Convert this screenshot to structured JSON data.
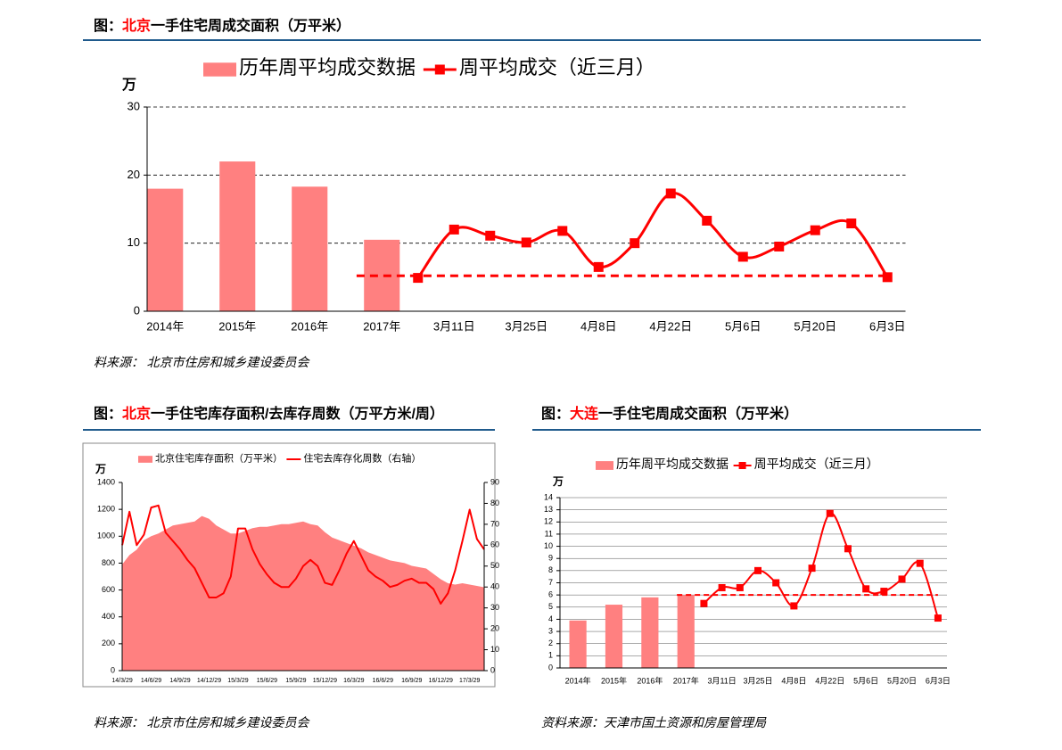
{
  "chart_data": [
    {
      "type": "bar_line",
      "heading": [
        "图：",
        "北京",
        "一手住宅周成交面积（万平米）"
      ],
      "heading_colors": [
        "#000000",
        "#ff0000",
        "#000000"
      ],
      "source": "料来源：  北京市住房和城乡建设委员会",
      "y_unit": "万",
      "categories": [
        "2014年",
        null,
        "2015年",
        null,
        "2016年",
        null,
        "2017年",
        null,
        "3月11日",
        null,
        "3月25日",
        null,
        "4月8日",
        null,
        "4月22日",
        null,
        "5月6日",
        null,
        "5月20日",
        null,
        "6月3日"
      ],
      "series": [
        {
          "name": "历年周平均成交数据",
          "type": "bar",
          "color": "#ff8080",
          "values": [
            18,
            null,
            22,
            null,
            18.3,
            null,
            10.5,
            null,
            null,
            null,
            null,
            null,
            null,
            null,
            null,
            null,
            null,
            null,
            null,
            null,
            null
          ]
        },
        {
          "name": "周平均成交（近三月）",
          "type": "line",
          "color": "#ff0000",
          "marker": "square",
          "smooth": true,
          "values": [
            null,
            null,
            null,
            null,
            null,
            null,
            null,
            4.9,
            12,
            11.1,
            10.1,
            11.8,
            6.5,
            10,
            17.3,
            13.3,
            8,
            9.5,
            11.9,
            12.9,
            5
          ]
        }
      ],
      "reference_line": {
        "value": 5.2,
        "color": "#ff0000",
        "dashed": true
      },
      "ylim": [
        0,
        30
      ],
      "yticks": [
        0,
        10,
        20,
        30
      ],
      "grid": true,
      "grid_style": "dashed"
    },
    {
      "type": "area_line",
      "heading": [
        "图：",
        "北京",
        "一手住宅库存面积/去库存周数（万平方米/周）"
      ],
      "heading_colors": [
        "#000000",
        "#ff0000",
        "#000000"
      ],
      "source": "料来源：   北京市住房和城乡建设委员会",
      "y_unit": "万",
      "categories": [
        "14/3/29",
        null,
        null,
        null,
        "14/6/29",
        null,
        null,
        null,
        "14/9/29",
        null,
        null,
        null,
        "14/12/29",
        null,
        null,
        null,
        "15/3/29",
        null,
        null,
        null,
        "15/6/29",
        null,
        null,
        null,
        "15/9/29",
        null,
        null,
        null,
        "15/12/29",
        null,
        null,
        null,
        "16/3/29",
        null,
        null,
        null,
        "16/6/29",
        null,
        null,
        null,
        "16/9/29",
        null,
        null,
        null,
        "16/12/29",
        null,
        null,
        null,
        "17/3/29",
        null,
        null
      ],
      "series": [
        {
          "name": "北京住宅库存面积（万平米）",
          "type": "area",
          "color": "#ff8080",
          "values": [
            790,
            860,
            900,
            970,
            1000,
            1020,
            1050,
            1080,
            1090,
            1100,
            1110,
            1150,
            1130,
            1080,
            1050,
            1020,
            1020,
            1040,
            1060,
            1070,
            1070,
            1080,
            1090,
            1090,
            1100,
            1110,
            1090,
            1080,
            1030,
            990,
            970,
            950,
            930,
            910,
            880,
            860,
            840,
            820,
            810,
            800,
            780,
            770,
            760,
            720,
            680,
            650,
            640,
            650,
            640,
            630,
            620
          ]
        },
        {
          "name": "住宅去库存化周数（右轴）",
          "type": "line",
          "axis": "y2",
          "color": "#ff0000",
          "smooth": false,
          "values": [
            60,
            76,
            60,
            65,
            78,
            79,
            66,
            62,
            58,
            53,
            49,
            42,
            35,
            35,
            37,
            45,
            68,
            68,
            58,
            51,
            46,
            42,
            40,
            40,
            44,
            50,
            53,
            50,
            42,
            41,
            48,
            56,
            62,
            55,
            48,
            45,
            43,
            40,
            41,
            43,
            44,
            42,
            42,
            39,
            32,
            37,
            48,
            62,
            77,
            63,
            58
          ]
        }
      ],
      "ylim": [
        0,
        1400
      ],
      "yticks": [
        0,
        200,
        400,
        600,
        800,
        1000,
        1200,
        1400
      ],
      "y2lim": [
        0,
        90
      ],
      "y2ticks": [
        0,
        10,
        20,
        30,
        40,
        50,
        60,
        70,
        80,
        90
      ],
      "grid": false
    },
    {
      "type": "bar_line",
      "heading": [
        "图：",
        "大连",
        "一手住宅周成交面积（万平米）"
      ],
      "heading_colors": [
        "#000000",
        "#ff0000",
        "#000000"
      ],
      "source": "资料来源：天津市国土资源和房屋管理局",
      "y_unit": "万",
      "categories": [
        "2014年",
        null,
        "2015年",
        null,
        "2016年",
        null,
        "2017年",
        null,
        "3月11日",
        null,
        "3月25日",
        null,
        "4月8日",
        null,
        "4月22日",
        null,
        "5月6日",
        null,
        "5月20日",
        null,
        "6月3日"
      ],
      "series": [
        {
          "name": "历年周平均成交数据",
          "type": "bar",
          "color": "#ff8080",
          "values": [
            3.9,
            null,
            5.2,
            null,
            5.8,
            null,
            6.0,
            null,
            null,
            null,
            null,
            null,
            null,
            null,
            null,
            null,
            null,
            null,
            null,
            null,
            null
          ]
        },
        {
          "name": "周平均成交（近三月）",
          "type": "line",
          "color": "#ff0000",
          "marker": "square",
          "smooth": true,
          "values": [
            null,
            null,
            null,
            null,
            null,
            null,
            null,
            5.3,
            6.6,
            6.6,
            8.0,
            7.0,
            5.1,
            8.2,
            12.7,
            9.8,
            6.5,
            6.3,
            7.3,
            8.6,
            4.1
          ]
        }
      ],
      "reference_line": {
        "value": 6.0,
        "color": "#ff0000",
        "dashed": true
      },
      "ylim": [
        0,
        14
      ],
      "yticks": [
        0,
        1,
        2,
        3,
        4,
        5,
        6,
        7,
        8,
        9,
        10,
        11,
        12,
        13,
        14
      ],
      "grid": true,
      "grid_style": "solid"
    }
  ]
}
